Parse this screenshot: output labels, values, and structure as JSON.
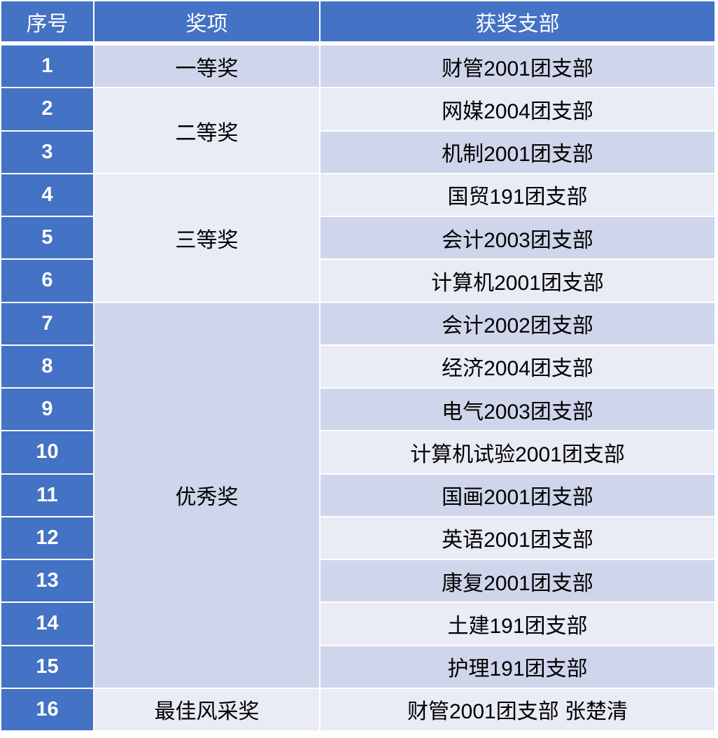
{
  "header": {
    "index": "序号",
    "award": "奖项",
    "branch": "获奖支部"
  },
  "colors": {
    "header": "#4472C4",
    "row_dark": "#CFD5EA",
    "row_light": "#E9EBF5"
  },
  "awards": [
    {
      "label": "一等奖",
      "rows": [
        1,
        1
      ],
      "shade": "dark"
    },
    {
      "label": "二等奖",
      "rows": [
        2,
        3
      ],
      "shade": "light"
    },
    {
      "label": "三等奖",
      "rows": [
        4,
        6
      ],
      "shade": "light"
    },
    {
      "label": "优秀奖",
      "rows": [
        7,
        15
      ],
      "shade": "dark"
    },
    {
      "label": "最佳风采奖",
      "rows": [
        16,
        16
      ],
      "shade": "light"
    }
  ],
  "rows": [
    {
      "index": "1",
      "branch": "财管2001团支部"
    },
    {
      "index": "2",
      "branch": "网媒2004团支部"
    },
    {
      "index": "3",
      "branch": "机制2001团支部"
    },
    {
      "index": "4",
      "branch": "国贸191团支部"
    },
    {
      "index": "5",
      "branch": "会计2003团支部"
    },
    {
      "index": "6",
      "branch": "计算机2001团支部"
    },
    {
      "index": "7",
      "branch": "会计2002团支部"
    },
    {
      "index": "8",
      "branch": "经济2004团支部"
    },
    {
      "index": "9",
      "branch": "电气2003团支部"
    },
    {
      "index": "10",
      "branch": "计算机试验2001团支部"
    },
    {
      "index": "11",
      "branch": "国画2001团支部"
    },
    {
      "index": "12",
      "branch": "英语2001团支部"
    },
    {
      "index": "13",
      "branch": "康复2001团支部"
    },
    {
      "index": "14",
      "branch": "土建191团支部"
    },
    {
      "index": "15",
      "branch": "护理191团支部"
    },
    {
      "index": "16",
      "branch": "财管2001团支部 张楚清"
    }
  ]
}
